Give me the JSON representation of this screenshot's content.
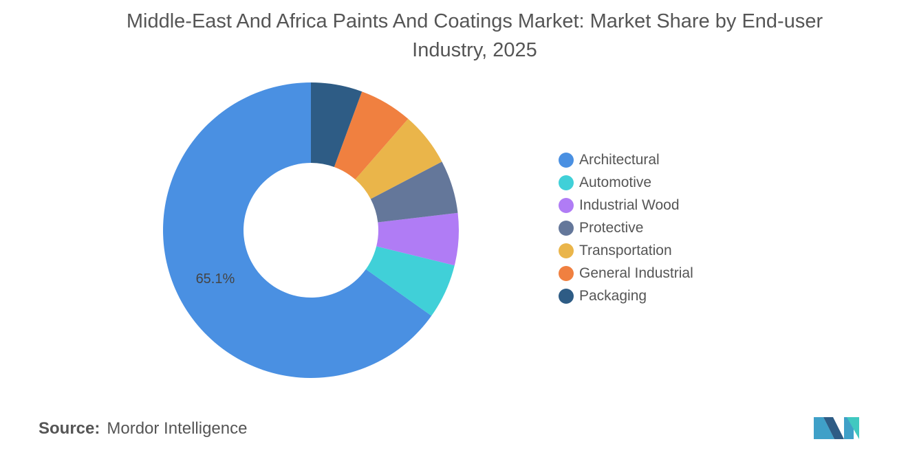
{
  "chart_data": {
    "type": "donut",
    "title": "Middle-East And Africa Paints And Coatings Market: Market Share by End-user Industry, 2025",
    "categories": [
      "Architectural",
      "Automotive",
      "Industrial Wood",
      "Protective",
      "Transportation",
      "General Industrial",
      "Packaging"
    ],
    "values": [
      65.1,
      6.0,
      5.7,
      5.8,
      5.9,
      5.8,
      5.6
    ],
    "value_labels": [
      "65.1%",
      null,
      null,
      null,
      null,
      null,
      null
    ],
    "colors": [
      "#4a90e2",
      "#40d0d8",
      "#b07cf5",
      "#64779a",
      "#eab54a",
      "#f08040",
      "#2e5c85"
    ],
    "legend": "right",
    "source_label": "Source:",
    "source": "Mordor Intelligence"
  }
}
